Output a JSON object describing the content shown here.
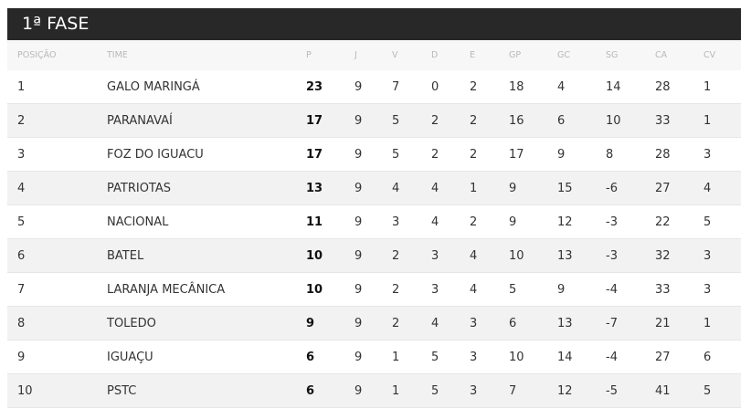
{
  "title": "1ª FASE",
  "headers": [
    "POSIÇÃO",
    "TIME",
    "P",
    "J",
    "V",
    "D",
    "E",
    "GP",
    "GC",
    "SG",
    "CA",
    "CV"
  ],
  "rows": [
    [
      "1",
      "GALO MARINGÁ",
      "23",
      "9",
      "7",
      "0",
      "2",
      "18",
      "4",
      "14",
      "28",
      "1"
    ],
    [
      "2",
      "PARANAVAÍ",
      "17",
      "9",
      "5",
      "2",
      "2",
      "16",
      "6",
      "10",
      "33",
      "1"
    ],
    [
      "3",
      "FOZ DO IGUACU",
      "17",
      "9",
      "5",
      "2",
      "2",
      "17",
      "9",
      "8",
      "28",
      "3"
    ],
    [
      "4",
      "PATRIOTAS",
      "13",
      "9",
      "4",
      "4",
      "1",
      "9",
      "15",
      "-6",
      "27",
      "4"
    ],
    [
      "5",
      "NACIONAL",
      "11",
      "9",
      "3",
      "4",
      "2",
      "9",
      "12",
      "-3",
      "22",
      "5"
    ],
    [
      "6",
      "BATEL",
      "10",
      "9",
      "2",
      "3",
      "4",
      "10",
      "13",
      "-3",
      "32",
      "3"
    ],
    [
      "7",
      "LARANJA MECÂNICA",
      "10",
      "9",
      "2",
      "3",
      "4",
      "5",
      "9",
      "-4",
      "33",
      "3"
    ],
    [
      "8",
      "TOLEDO",
      "9",
      "9",
      "2",
      "4",
      "3",
      "6",
      "13",
      "-7",
      "21",
      "1"
    ],
    [
      "9",
      "IGUAÇU",
      "6",
      "9",
      "1",
      "5",
      "3",
      "10",
      "14",
      "-4",
      "27",
      "6"
    ],
    [
      "10",
      "PSTC",
      "6",
      "9",
      "1",
      "5",
      "3",
      "7",
      "12",
      "-5",
      "41",
      "5"
    ]
  ]
}
